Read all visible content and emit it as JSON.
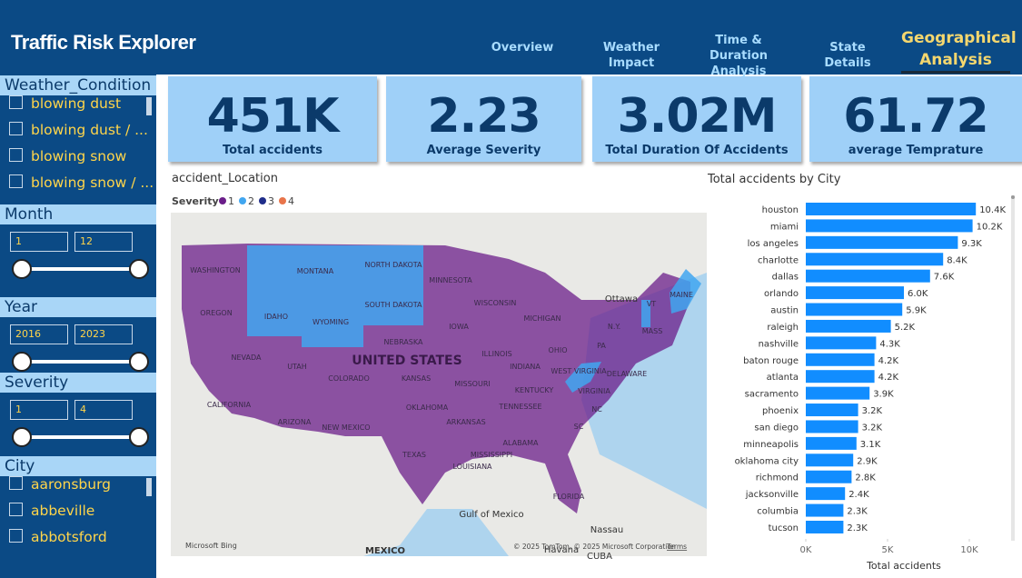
{
  "header": {
    "title": "Traffic Risk Explorer",
    "nav": [
      "Overview",
      "Weather Impact",
      "Time & Duration Analysis",
      "State Details",
      "Geographical Analysis"
    ]
  },
  "filters": {
    "weather": {
      "title": "Weather_Condition",
      "items": [
        "blowing dust",
        "blowing dust / ...",
        "blowing snow",
        "blowing snow / ..."
      ]
    },
    "month": {
      "title": "Month",
      "range": [
        "1",
        "12"
      ]
    },
    "year": {
      "title": "Year",
      "range": [
        "2016",
        "2023"
      ]
    },
    "severity": {
      "title": "Severity",
      "range": [
        "1",
        "4"
      ]
    },
    "city": {
      "title": "City",
      "items": [
        "aaronsburg",
        "abbeville",
        "abbotsford"
      ]
    }
  },
  "kpis": [
    {
      "value": "451K",
      "label": "Total accidents"
    },
    {
      "value": "2.23",
      "label": "Average Severity"
    },
    {
      "value": "3.02M",
      "label": "Total Duration Of Accidents"
    },
    {
      "value": "61.72",
      "label": "average Temprature"
    }
  ],
  "map": {
    "title": "accident_Location",
    "legend_title": "Severity",
    "legend": [
      {
        "label": "1",
        "color": "#6b1e8a"
      },
      {
        "label": "2",
        "color": "#41a6f0"
      },
      {
        "label": "3",
        "color": "#1f2d8a"
      },
      {
        "label": "4",
        "color": "#e8744a"
      }
    ],
    "country": "UNITED STATES",
    "labels": [
      "WASHINGTON",
      "MONTANA",
      "NORTH DAKOTA",
      "MINNESOTA",
      "OREGON",
      "IDAHO",
      "SOUTH DAKOTA",
      "WISCONSIN",
      "WYOMING",
      "MICHIGAN",
      "IOWA",
      "NEBRASKA",
      "NEVADA",
      "UTAH",
      "COLORADO",
      "KANSAS",
      "MISSOURI",
      "ILLINOIS",
      "INDIANA",
      "OHIO",
      "KENTUCKY",
      "VIRGINIA",
      "CALIFORNIA",
      "ARIZONA",
      "NEW MEXICO",
      "OKLAHOMA",
      "ARKANSAS",
      "TENNESSEE",
      "NC",
      "SC",
      "TEXAS",
      "MISSISSIPPI",
      "ALABAMA",
      "LOUISIANA",
      "FLORIDA",
      "Ottawa",
      "N.Y.",
      "PA",
      "MASS",
      "VT",
      "MAINE",
      "DELAWARE",
      "WEST VIRGINIA",
      "Gulf of Mexico",
      "Nassau",
      "MEXICO",
      "Havana",
      "CUBA"
    ],
    "credit": "Microsoft Bing",
    "copyright": "© 2025 TomTom, © 2025 Microsoft Corporation",
    "terms": "Terms"
  },
  "chart_data": {
    "type": "hbar",
    "title": "Total accidents by City",
    "x_label": "Total accidents",
    "categories": [
      "houston",
      "miami",
      "los angeles",
      "charlotte",
      "dallas",
      "orlando",
      "austin",
      "raleigh",
      "nashville",
      "baton rouge",
      "atlanta",
      "sacramento",
      "phoenix",
      "san diego",
      "minneapolis",
      "oklahoma city",
      "richmond",
      "jacksonville",
      "columbia",
      "tucson"
    ],
    "values": [
      10400,
      10200,
      9300,
      8400,
      7600,
      6000,
      5900,
      5200,
      4300,
      4200,
      4200,
      3900,
      3200,
      3200,
      3100,
      2900,
      2800,
      2400,
      2300,
      2300
    ],
    "value_labels": [
      "10.4K",
      "10.2K",
      "9.3K",
      "8.4K",
      "7.6K",
      "6.0K",
      "5.9K",
      "5.2K",
      "4.3K",
      "4.2K",
      "4.2K",
      "3.9K",
      "3.2K",
      "3.2K",
      "3.1K",
      "2.9K",
      "2.8K",
      "2.4K",
      "2.3K",
      "2.3K"
    ],
    "color": "#118dff",
    "xlim": [
      0,
      12000
    ],
    "xticks": [
      {
        "value": 0,
        "label": "0K"
      },
      {
        "value": 5000,
        "label": "5K"
      },
      {
        "value": 10000,
        "label": "10K"
      }
    ]
  }
}
